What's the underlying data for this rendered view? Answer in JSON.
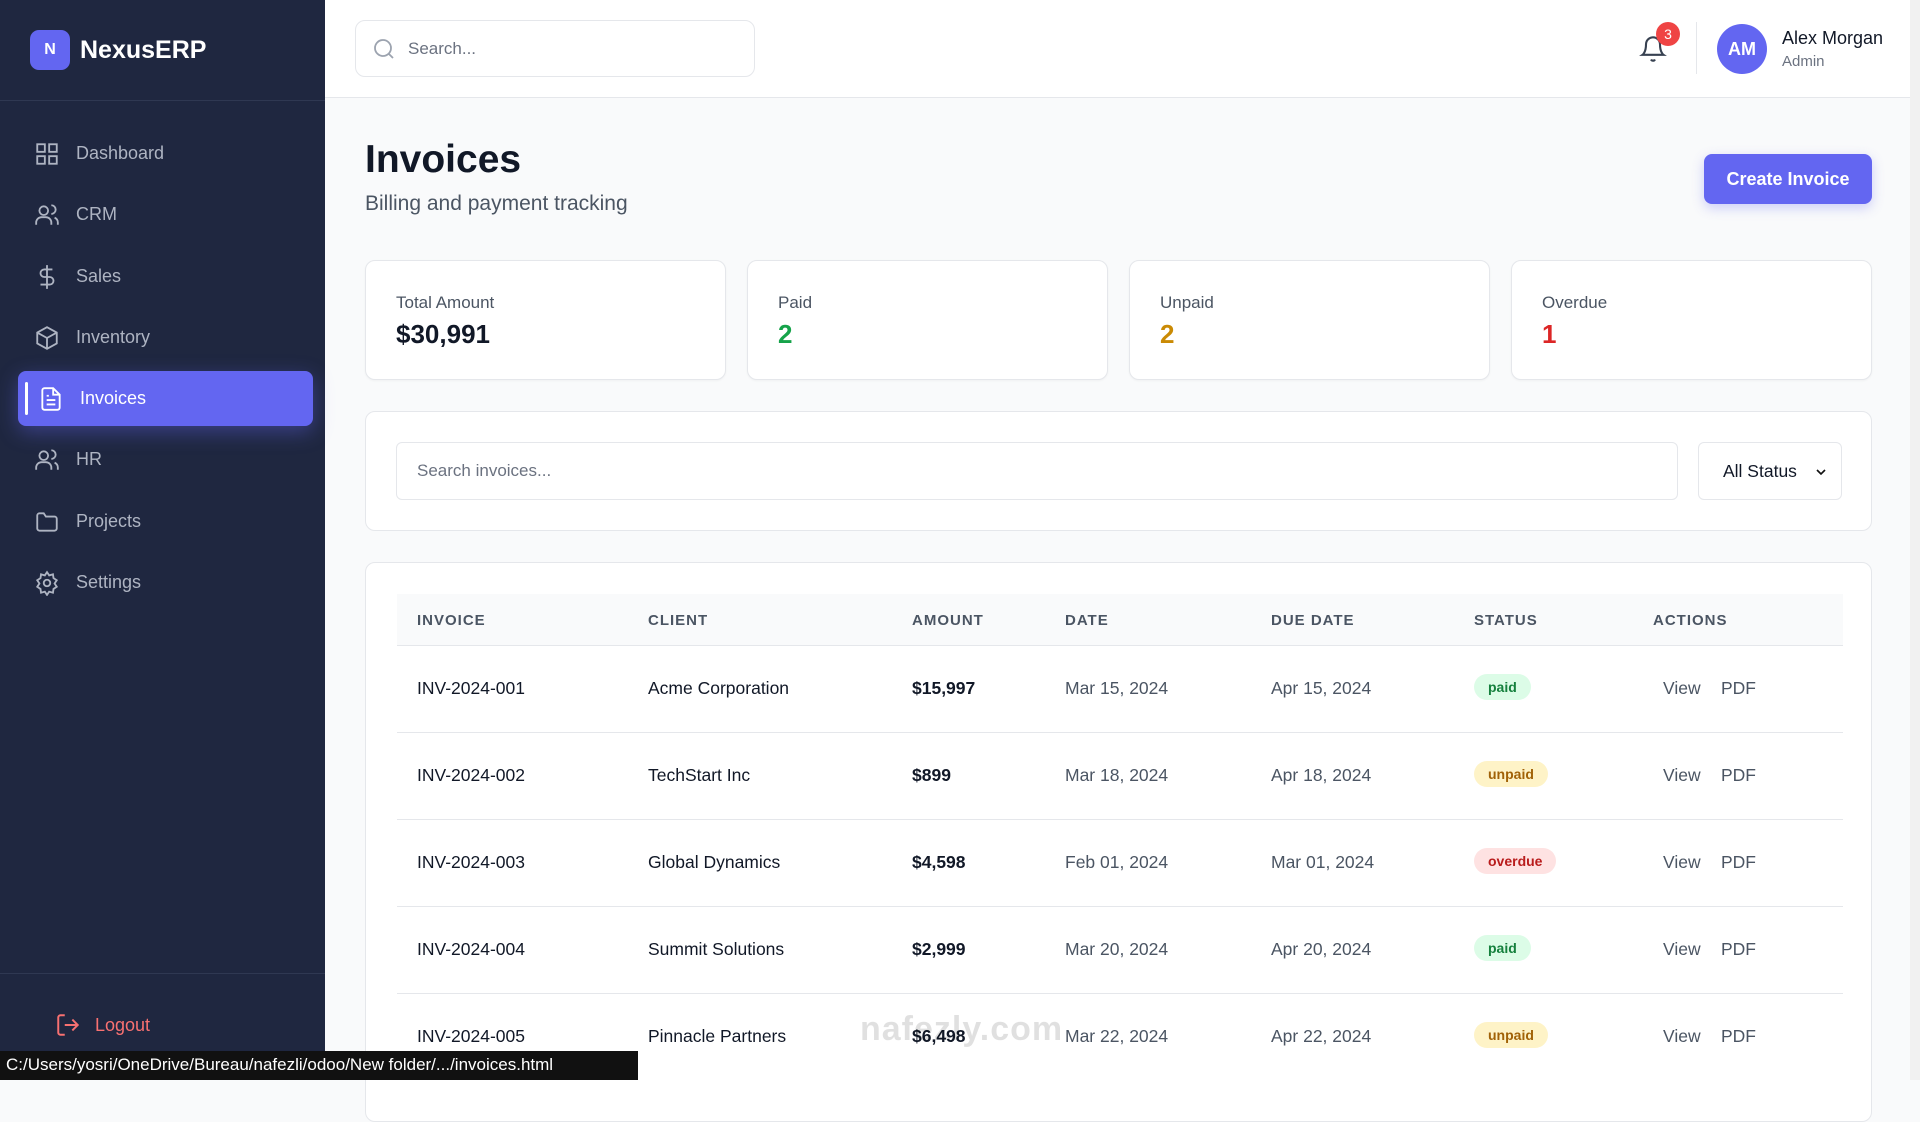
{
  "sidebar": {
    "logo": {
      "badge": "N",
      "name": "NexusERP"
    },
    "nav": [
      "Dashboard",
      "CRM",
      "Sales",
      "Inventory",
      "Invoices",
      "HR",
      "Projects",
      "Settings"
    ],
    "logout": "Logout"
  },
  "header": {
    "search_placeholder": "Search...",
    "notifications": "3",
    "user": {
      "initials": "AM",
      "name": "Alex Morgan",
      "role": "Admin"
    }
  },
  "page": {
    "title": "Invoices",
    "subtitle": "Billing and payment tracking",
    "create_button": "Create Invoice"
  },
  "stats": [
    {
      "label": "Total Amount",
      "value": "$30,991"
    },
    {
      "label": "Paid",
      "value": "2"
    },
    {
      "label": "Unpaid",
      "value": "2"
    },
    {
      "label": "Overdue",
      "value": "1"
    }
  ],
  "filters": {
    "search_placeholder": "Search invoices...",
    "status_select": "All Status"
  },
  "table": {
    "columns": [
      "INVOICE",
      "CLIENT",
      "AMOUNT",
      "DATE",
      "DUE DATE",
      "STATUS",
      "ACTIONS"
    ],
    "rows": [
      [
        "INV-2024-001",
        "Acme Corporation",
        "$15,997",
        "Mar 15, 2024",
        "Apr 15, 2024",
        "paid"
      ],
      [
        "INV-2024-002",
        "TechStart Inc",
        "$899",
        "Mar 18, 2024",
        "Apr 18, 2024",
        "unpaid"
      ],
      [
        "INV-2024-003",
        "Global Dynamics",
        "$4,598",
        "Feb 01, 2024",
        "Mar 01, 2024",
        "overdue"
      ],
      [
        "INV-2024-004",
        "Summit Solutions",
        "$2,999",
        "Mar 20, 2024",
        "Apr 20, 2024",
        "paid"
      ],
      [
        "INV-2024-005",
        "Pinnacle Partners",
        "$6,498",
        "Mar 22, 2024",
        "Apr 22, 2024",
        "unpaid"
      ]
    ],
    "actions": [
      "View",
      "PDF"
    ]
  },
  "status_bar": "C:/Users/yosri/OneDrive/Bureau/nafezli/odoo/New folder/.../invoices.html",
  "watermark": "nafezly.com"
}
